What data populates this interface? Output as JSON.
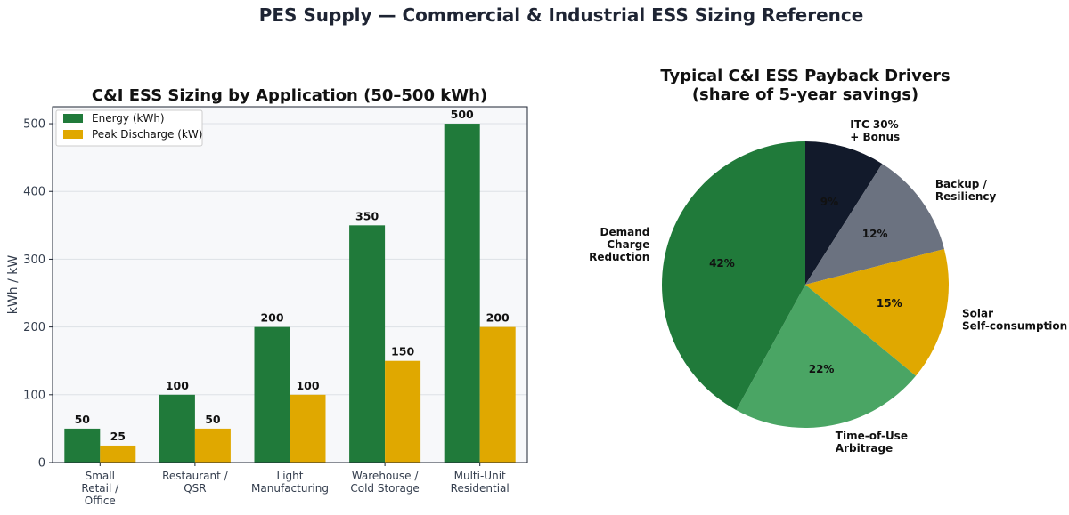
{
  "figure_title": "PES Supply — Commercial & Industrial ESS Sizing Reference",
  "chart_data": [
    {
      "type": "bar",
      "title": "C&I ESS Sizing by Application (50–500 kWh)",
      "xlabel": "",
      "ylabel": "kWh / kW",
      "ylim": [
        0,
        525
      ],
      "yticks": [
        0,
        100,
        200,
        300,
        400,
        500
      ],
      "grid": true,
      "legend_position": "top-left",
      "categories": [
        [
          "Small",
          "Retail /",
          "Office"
        ],
        [
          "Restaurant /",
          "QSR"
        ],
        [
          "Light",
          "Manufacturing"
        ],
        [
          "Warehouse /",
          "Cold Storage"
        ],
        [
          "Multi-Unit",
          "Residential"
        ]
      ],
      "series": [
        {
          "name": "Energy (kWh)",
          "color": "#207a3a",
          "values": [
            50,
            100,
            200,
            350,
            500
          ]
        },
        {
          "name": "Peak Discharge (kW)",
          "color": "#e0a800",
          "values": [
            25,
            50,
            100,
            150,
            200
          ]
        }
      ],
      "data_labels": [
        [
          "50",
          "100",
          "200",
          "350",
          "500"
        ],
        [
          "25",
          "50",
          "100",
          "150",
          "200"
        ]
      ]
    },
    {
      "type": "pie",
      "title": [
        "Typical C&I ESS Payback Drivers",
        "(share of 5-year savings)"
      ],
      "slices": [
        {
          "label": [
            "ITC 30%",
            "+ Bonus"
          ],
          "value": 9,
          "pct_label": "9%",
          "color": "#121a2b"
        },
        {
          "label": [
            "Backup /",
            "Resiliency"
          ],
          "value": 12,
          "pct_label": "12%",
          "color": "#6b7280"
        },
        {
          "label": [
            "Solar",
            "Self-consumption"
          ],
          "value": 15,
          "pct_label": "15%",
          "color": "#e0a800"
        },
        {
          "label": [
            "Time-of-Use",
            "Arbitrage"
          ],
          "value": 22,
          "pct_label": "22%",
          "color": "#4aa564"
        },
        {
          "label": [
            "Demand",
            "Charge",
            "Reduction"
          ],
          "value": 42,
          "pct_label": "42%",
          "color": "#207a3a"
        }
      ],
      "start": "top",
      "direction": "clockwise"
    }
  ]
}
